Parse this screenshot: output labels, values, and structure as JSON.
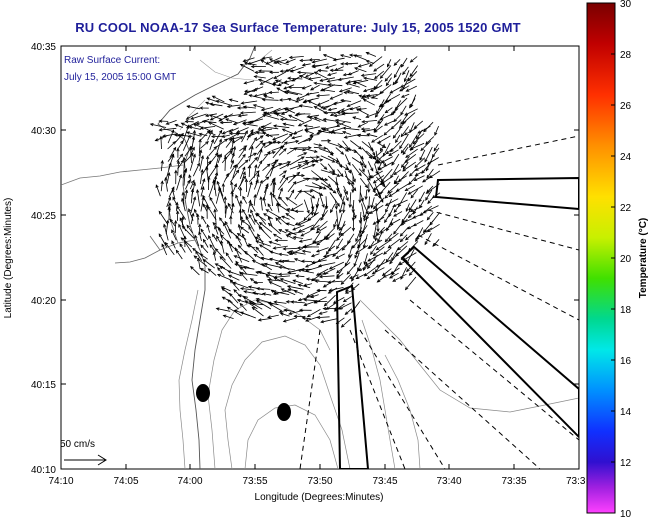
{
  "map": {
    "title": "RU COOL  NOAA-17  Sea Surface Temperature:  July 15, 2005 1520 GMT",
    "legend_title": "Raw Surface Current:",
    "legend_time": "July 15, 2005 15:00 GMT",
    "scale_label": "50 cm/s",
    "xlabel": "Longitude (Degrees:Minutes)",
    "ylabel": "Latitude (Degrees:Minutes)",
    "x_ticks": [
      "74:10",
      "74:05",
      "74:00",
      "73:55",
      "73:50",
      "73:45",
      "73:40",
      "73:35",
      "73:3"
    ],
    "y_ticks": [
      "40:35",
      "40:30",
      "40:25",
      "40:20",
      "40:15",
      "40:10"
    ],
    "colorbar": {
      "label": "Temperature (°C)",
      "ticks": [
        "30",
        "28",
        "26",
        "24",
        "22",
        "20",
        "18",
        "16",
        "14",
        "12",
        "10"
      ],
      "range": [
        10,
        30
      ]
    }
  }
}
